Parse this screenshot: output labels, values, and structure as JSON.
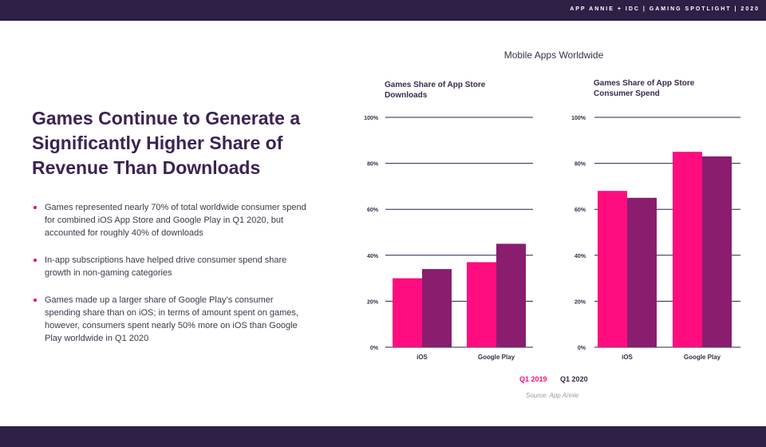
{
  "header": {
    "text": "APP ANNIE + IDC  |  GAMING SPOTLIGHT  |  2020"
  },
  "headline": "Games Continue to Generate a Significantly Higher Share of Revenue Than Downloads",
  "bullets": [
    "Games represented nearly 70% of total worldwide consumer spend for combined iOS App Store and Google Play in Q1 2020, but accounted for roughly 40% of downloads",
    "In-app subscriptions have helped drive consumer spend share growth in non-gaming categories",
    "Games made up a larger share of Google Play’s consumer spending share than on iOS; in terms    of amount spent on games, however, consumers spent nearly 50% more on iOS than Google Play worldwide in Q1 2020"
  ],
  "figure_title": "Mobile Apps Worldwide",
  "source": "Source: App Annie",
  "colors": {
    "q1_2019": "#ff0d7f",
    "q1_2020": "#8a1d6e",
    "header_bg": "#2e1f45",
    "accent": "#e6007e"
  },
  "chart_data": [
    {
      "type": "bar",
      "title": "Games Share of App Store Downloads",
      "categories": [
        "iOS",
        "Google Play"
      ],
      "series": [
        {
          "name": "Q1 2019",
          "values": [
            30,
            37
          ]
        },
        {
          "name": "Q1 2020",
          "values": [
            34,
            45
          ]
        }
      ],
      "yticks": [
        "0%",
        "20%",
        "40%",
        "60%",
        "80%",
        "100%"
      ],
      "ylim": [
        0,
        100
      ],
      "grid": true,
      "legend": "bottom"
    },
    {
      "type": "bar",
      "title": "Games Share of App Store Consumer Spend",
      "categories": [
        "iOS",
        "Google Play"
      ],
      "series": [
        {
          "name": "Q1 2019",
          "values": [
            68,
            85
          ]
        },
        {
          "name": "Q1 2020",
          "values": [
            65,
            83
          ]
        }
      ],
      "yticks": [
        "0%",
        "20%",
        "40%",
        "60%",
        "80%",
        "100%"
      ],
      "ylim": [
        0,
        100
      ],
      "grid": true,
      "legend": "bottom"
    }
  ]
}
